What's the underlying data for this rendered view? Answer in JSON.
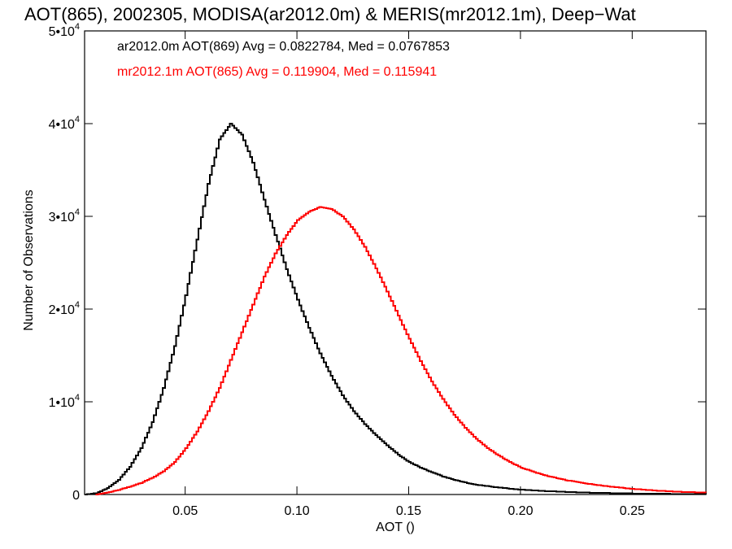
{
  "chart_data": {
    "type": "line",
    "title": "AOT(865), 2002305, MODISA(ar2012.0m) & MERIS(mr2012.1m), Deep−Wat",
    "xlabel": "AOT ()",
    "ylabel": "Number of Observations",
    "xlim": [
      0.005,
      0.283
    ],
    "ylim": [
      0,
      50000
    ],
    "x_ticks": [
      {
        "value": 0.05,
        "label": "0.05"
      },
      {
        "value": 0.1,
        "label": "0.10"
      },
      {
        "value": 0.15,
        "label": "0.15"
      },
      {
        "value": 0.2,
        "label": "0.20"
      },
      {
        "value": 0.25,
        "label": "0.25"
      }
    ],
    "y_ticks": [
      {
        "value": 0,
        "mantissa": "0",
        "exponent": ""
      },
      {
        "value": 10000,
        "mantissa": "1•10",
        "exponent": "4"
      },
      {
        "value": 20000,
        "mantissa": "2•10",
        "exponent": "4"
      },
      {
        "value": 30000,
        "mantissa": "3•10",
        "exponent": "4"
      },
      {
        "value": 40000,
        "mantissa": "4•10",
        "exponent": "4"
      },
      {
        "value": 50000,
        "mantissa": "5•10",
        "exponent": "4"
      }
    ],
    "grid": false,
    "annotations": [
      {
        "text": "ar2012.0m AOT(869) Avg = 0.0822784, Med = 0.0767853",
        "color": "#000000"
      },
      {
        "text": "mr2012.1m AOT(865) Avg = 0.119904, Med = 0.115941",
        "color": "#ff0000"
      }
    ],
    "series": [
      {
        "color": "#000000",
        "style": "step",
        "points": [
          [
            0.005,
            0
          ],
          [
            0.01,
            150
          ],
          [
            0.015,
            700
          ],
          [
            0.02,
            1600
          ],
          [
            0.025,
            3000
          ],
          [
            0.03,
            5000
          ],
          [
            0.035,
            7800
          ],
          [
            0.04,
            11500
          ],
          [
            0.045,
            16000
          ],
          [
            0.05,
            21500
          ],
          [
            0.055,
            27500
          ],
          [
            0.06,
            33500
          ],
          [
            0.065,
            38300
          ],
          [
            0.07,
            40000
          ],
          [
            0.075,
            38800
          ],
          [
            0.08,
            35800
          ],
          [
            0.085,
            31800
          ],
          [
            0.09,
            28000
          ],
          [
            0.095,
            24300
          ],
          [
            0.1,
            21000
          ],
          [
            0.105,
            18000
          ],
          [
            0.11,
            15200
          ],
          [
            0.115,
            12800
          ],
          [
            0.12,
            10700
          ],
          [
            0.125,
            9000
          ],
          [
            0.13,
            7600
          ],
          [
            0.135,
            6400
          ],
          [
            0.14,
            5300
          ],
          [
            0.145,
            4300
          ],
          [
            0.15,
            3500
          ],
          [
            0.155,
            2900
          ],
          [
            0.16,
            2400
          ],
          [
            0.165,
            1950
          ],
          [
            0.17,
            1600
          ],
          [
            0.175,
            1300
          ],
          [
            0.18,
            1050
          ],
          [
            0.19,
            750
          ],
          [
            0.2,
            520
          ],
          [
            0.21,
            380
          ],
          [
            0.22,
            280
          ],
          [
            0.23,
            200
          ],
          [
            0.24,
            150
          ],
          [
            0.25,
            110
          ],
          [
            0.26,
            80
          ],
          [
            0.27,
            60
          ],
          [
            0.283,
            40
          ]
        ]
      },
      {
        "color": "#ff0000",
        "style": "step",
        "points": [
          [
            0.01,
            0
          ],
          [
            0.015,
            200
          ],
          [
            0.02,
            500
          ],
          [
            0.025,
            850
          ],
          [
            0.03,
            1250
          ],
          [
            0.035,
            1800
          ],
          [
            0.04,
            2500
          ],
          [
            0.045,
            3500
          ],
          [
            0.05,
            5000
          ],
          [
            0.055,
            6800
          ],
          [
            0.06,
            9000
          ],
          [
            0.065,
            11500
          ],
          [
            0.07,
            14500
          ],
          [
            0.075,
            17500
          ],
          [
            0.08,
            20500
          ],
          [
            0.085,
            23500
          ],
          [
            0.09,
            26000
          ],
          [
            0.095,
            28000
          ],
          [
            0.1,
            29600
          ],
          [
            0.105,
            30500
          ],
          [
            0.11,
            31000
          ],
          [
            0.115,
            30800
          ],
          [
            0.12,
            30000
          ],
          [
            0.125,
            28600
          ],
          [
            0.13,
            26700
          ],
          [
            0.135,
            24400
          ],
          [
            0.14,
            21900
          ],
          [
            0.145,
            19300
          ],
          [
            0.15,
            16800
          ],
          [
            0.155,
            14400
          ],
          [
            0.16,
            12200
          ],
          [
            0.165,
            10300
          ],
          [
            0.17,
            8600
          ],
          [
            0.175,
            7200
          ],
          [
            0.18,
            6000
          ],
          [
            0.185,
            5000
          ],
          [
            0.19,
            4200
          ],
          [
            0.195,
            3500
          ],
          [
            0.2,
            2900
          ],
          [
            0.21,
            2100
          ],
          [
            0.22,
            1550
          ],
          [
            0.23,
            1150
          ],
          [
            0.24,
            850
          ],
          [
            0.25,
            600
          ],
          [
            0.26,
            430
          ],
          [
            0.27,
            300
          ],
          [
            0.283,
            200
          ]
        ]
      }
    ]
  }
}
